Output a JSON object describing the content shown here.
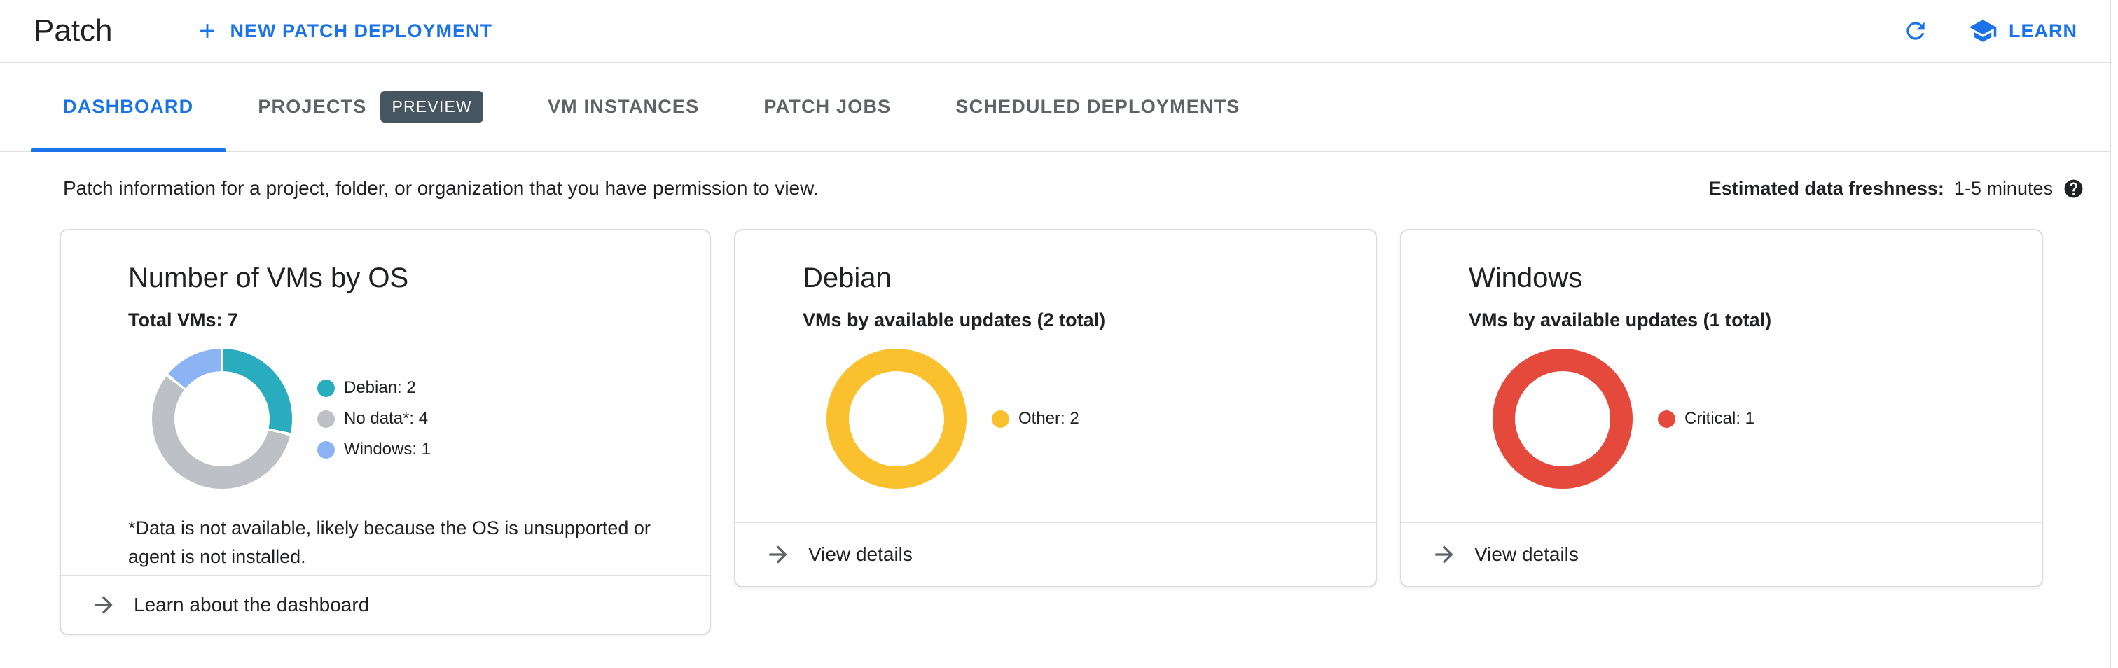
{
  "header": {
    "title": "Patch",
    "actions": {
      "new_patch_deployment": "NEW PATCH DEPLOYMENT",
      "learn": "LEARN"
    }
  },
  "tabs": [
    {
      "label": "DASHBOARD",
      "active": true
    },
    {
      "label": "PROJECTS",
      "badge": "PREVIEW"
    },
    {
      "label": "VM INSTANCES"
    },
    {
      "label": "PATCH JOBS"
    },
    {
      "label": "SCHEDULED DEPLOYMENTS"
    }
  ],
  "info": {
    "description": "Patch information for a project, folder, or organization that you have permission to view.",
    "freshness_label": "Estimated data freshness:",
    "freshness_value": "1-5 minutes"
  },
  "cards": [
    {
      "title": "Number of VMs by OS",
      "subtitle": "Total VMs: 7",
      "footnote": "*Data is not available, likely because the OS is unsupported or agent is not installed.",
      "action": "Learn about the dashboard",
      "chart": {
        "type": "donut",
        "total": 7,
        "segments": [
          {
            "label": "Debian",
            "value": 2,
            "color": "#29ACBE"
          },
          {
            "label": "No data*",
            "value": 4,
            "color": "#BDC1C6"
          },
          {
            "label": "Windows",
            "value": 1,
            "color": "#8CB4F5"
          }
        ]
      }
    },
    {
      "title": "Debian",
      "subtitle": "VMs by available updates (2 total)",
      "action": "View details",
      "chart": {
        "type": "donut",
        "total": 2,
        "segments": [
          {
            "label": "Other",
            "value": 2,
            "color": "#FBC02D"
          }
        ]
      }
    },
    {
      "title": "Windows",
      "subtitle": "VMs by available updates (1 total)",
      "action": "View details",
      "chart": {
        "type": "donut",
        "total": 1,
        "segments": [
          {
            "label": "Critical",
            "value": 1,
            "color": "#E5493C"
          }
        ]
      }
    }
  ],
  "chart_data": [
    {
      "type": "pie",
      "variant": "donut",
      "title": "Number of VMs by OS",
      "subtitle": "Total VMs: 7",
      "categories": [
        "Debian",
        "No data*",
        "Windows"
      ],
      "values": [
        2,
        4,
        1
      ],
      "colors": [
        "#29ACBE",
        "#BDC1C6",
        "#8CB4F5"
      ],
      "total": 7,
      "legend_position": "right"
    },
    {
      "type": "pie",
      "variant": "donut",
      "title": "Debian",
      "subtitle": "VMs by available updates (2 total)",
      "categories": [
        "Other"
      ],
      "values": [
        2
      ],
      "colors": [
        "#FBC02D"
      ],
      "total": 2,
      "legend_position": "right"
    },
    {
      "type": "pie",
      "variant": "donut",
      "title": "Windows",
      "subtitle": "VMs by available updates (1 total)",
      "categories": [
        "Critical"
      ],
      "values": [
        1
      ],
      "colors": [
        "#E5493C"
      ],
      "total": 1,
      "legend_position": "right"
    }
  ],
  "colors": {
    "accent_blue": "#1a73e8",
    "badge_bg": "#465660",
    "divider": "#e0e0e0",
    "text_primary": "#202124",
    "text_secondary": "#5f6368"
  },
  "icons": {
    "plus": "plus-icon",
    "refresh": "refresh-icon",
    "learn": "graduation-cap-icon",
    "help": "help-icon",
    "action_arrow": "arrow-forward-icon"
  }
}
